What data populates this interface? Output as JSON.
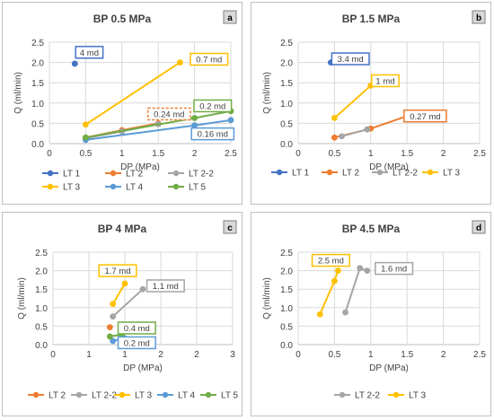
{
  "colors": {
    "LT 1": "#4472c4",
    "LT 2": "#ed7d31",
    "LT 2-2": "#a5a5a5",
    "LT 3": "#ffc000",
    "LT 4": "#5b9bd5",
    "LT 5": "#70ad47",
    "axis": "#bfbfbf",
    "grid": "#d9d9d9",
    "text": "#404040"
  },
  "chart_data": [
    {
      "id": "a",
      "panel_label": "a",
      "type": "scatter",
      "title": "BP  0.5 MPa",
      "xlabel": "DP (MPa)",
      "ylabel": "Q (ml/min)",
      "xlim": [
        0,
        2.5
      ],
      "ylim": [
        0,
        2.5
      ],
      "xticks": [
        "0",
        "0.5",
        "1",
        "1.5",
        "2",
        "2.5"
      ],
      "yticks": [
        "0.0",
        "0.5",
        "1.0",
        "1.5",
        "2.0",
        "2.5"
      ],
      "grid": true,
      "legend_position": "bottom",
      "legend": [
        "LT 1",
        "LT 2",
        "LT 2-2",
        "LT 3",
        "LT 4",
        "LT 5"
      ],
      "series": [
        {
          "name": "LT 1",
          "points": [
            [
              0.35,
              1.97
            ]
          ]
        },
        {
          "name": "LT 2",
          "points": [
            [
              0.5,
              0.15
            ],
            [
              1.0,
              0.33
            ],
            [
              1.5,
              0.5
            ]
          ]
        },
        {
          "name": "LT 2-2",
          "points": [
            [
              0.5,
              0.13
            ],
            [
              1.0,
              0.3
            ],
            [
              1.5,
              0.48
            ]
          ]
        },
        {
          "name": "LT 3",
          "points": [
            [
              0.5,
              0.47
            ],
            [
              1.8,
              2.0
            ]
          ]
        },
        {
          "name": "LT 4",
          "points": [
            [
              0.5,
              0.09
            ],
            [
              2.0,
              0.45
            ],
            [
              2.5,
              0.58
            ]
          ]
        },
        {
          "name": "LT 5",
          "points": [
            [
              0.5,
              0.15
            ],
            [
              2.0,
              0.63
            ],
            [
              2.5,
              0.8
            ]
          ]
        }
      ],
      "annotations": [
        {
          "text": "4 md",
          "color": "LT 1",
          "at": [
            0.55,
            2.25
          ]
        },
        {
          "text": "0.7 md",
          "color": "LT 3",
          "at": [
            2.2,
            2.08
          ]
        },
        {
          "text": "0.24 md",
          "color": "LT 2",
          "at": [
            1.65,
            0.73
          ],
          "dashed": true
        },
        {
          "text": "0.2 md",
          "color": "LT 5",
          "at": [
            2.25,
            0.93
          ]
        },
        {
          "text": "0.16 md",
          "color": "LT 4",
          "at": [
            2.25,
            0.24
          ]
        }
      ]
    },
    {
      "id": "b",
      "panel_label": "b",
      "type": "scatter",
      "title": "BP 1.5 MPa",
      "xlabel": "DP (MPa)",
      "ylabel": "Q (ml/min)",
      "xlim": [
        0,
        2.5
      ],
      "ylim": [
        0,
        2.5
      ],
      "xticks": [
        "0",
        "0.5",
        "1",
        "1.5",
        "2",
        "2.5"
      ],
      "yticks": [
        "0.0",
        "0.5",
        "1.0",
        "1.5",
        "2.0",
        "2.5"
      ],
      "grid": true,
      "legend_position": "bottom",
      "legend": [
        "LT 1",
        "LT 2",
        "LT 2-2",
        "LT 3"
      ],
      "series": [
        {
          "name": "LT 1",
          "points": [
            [
              0.45,
              2.0
            ]
          ]
        },
        {
          "name": "LT 2",
          "points": [
            [
              0.5,
              0.15
            ],
            [
              1.0,
              0.37
            ],
            [
              1.5,
              0.68
            ]
          ]
        },
        {
          "name": "LT 2-2",
          "points": [
            [
              0.6,
              0.18
            ],
            [
              0.95,
              0.35
            ]
          ]
        },
        {
          "name": "LT 3",
          "points": [
            [
              0.5,
              0.63
            ],
            [
              1.0,
              1.43
            ]
          ]
        }
      ],
      "annotations": [
        {
          "text": "3.4 md",
          "color": "LT 1",
          "at": [
            0.72,
            2.09
          ]
        },
        {
          "text": "1 md",
          "color": "LT 3",
          "at": [
            1.2,
            1.55
          ]
        },
        {
          "text": "0.27 md",
          "color": "LT 2",
          "at": [
            1.75,
            0.68
          ]
        }
      ]
    },
    {
      "id": "c",
      "panel_label": "c",
      "type": "scatter",
      "title": "BP 4 MPa",
      "xlabel": "DP (MPa)",
      "ylabel": "Q (ml/min)",
      "xlim": [
        0,
        3
      ],
      "ylim": [
        0,
        2.5
      ],
      "xticks": [
        "0",
        "1",
        "1",
        "2",
        "2",
        "3"
      ],
      "yticks": [
        "0.0",
        "0.5",
        "1.0",
        "1.5",
        "2.0",
        "2.5"
      ],
      "grid": true,
      "legend_position": "bottom",
      "legend": [
        "LT 2",
        "LT 2-2",
        "LT 3",
        "LT 4",
        "LT 5"
      ],
      "series": [
        {
          "name": "LT 2",
          "points": [
            [
              0.95,
              0.47
            ]
          ]
        },
        {
          "name": "LT 2-2",
          "points": [
            [
              1.0,
              0.76
            ],
            [
              1.5,
              1.5
            ]
          ]
        },
        {
          "name": "LT 3",
          "points": [
            [
              1.0,
              1.1
            ],
            [
              1.2,
              1.65
            ]
          ]
        },
        {
          "name": "LT 4",
          "points": [
            [
              1.0,
              0.1
            ],
            [
              1.2,
              0.17
            ]
          ]
        },
        {
          "name": "LT 5",
          "points": [
            [
              0.95,
              0.22
            ],
            [
              1.15,
              0.27
            ]
          ]
        }
      ],
      "annotations": [
        {
          "text": "1.7 md",
          "color": "LT 3",
          "at": [
            1.08,
            2.0
          ]
        },
        {
          "text": "1.1 md",
          "color": "LT 2-2",
          "at": [
            1.88,
            1.59
          ]
        },
        {
          "text": "0.4 md",
          "color": "LT 5",
          "at": [
            1.4,
            0.45
          ]
        },
        {
          "text": "0.2 md",
          "color": "LT 4",
          "at": [
            1.4,
            0.05
          ]
        }
      ]
    },
    {
      "id": "d",
      "panel_label": "d",
      "type": "scatter",
      "title": "BP 4.5 MPa",
      "xlabel": "DP (MPa)",
      "ylabel": "Q (ml/min)",
      "xlim": [
        0,
        2.5
      ],
      "ylim": [
        0,
        2.5
      ],
      "xticks": [
        "0",
        "0.5",
        "1",
        "1.5",
        "2",
        "2.5"
      ],
      "yticks": [
        "0.0",
        "0.5",
        "1.0",
        "1.5",
        "2.0",
        "2.5"
      ],
      "grid": true,
      "legend_position": "bottom",
      "legend": [
        "LT 2-2",
        "LT 3"
      ],
      "series": [
        {
          "name": "LT 2-2",
          "points": [
            [
              0.65,
              0.87
            ],
            [
              0.85,
              2.07
            ],
            [
              0.95,
              2.0
            ]
          ]
        },
        {
          "name": "LT 3",
          "points": [
            [
              0.3,
              0.82
            ],
            [
              0.5,
              1.72
            ],
            [
              0.55,
              2.0
            ]
          ]
        }
      ],
      "annotations": [
        {
          "text": "2.5 md",
          "color": "LT 3",
          "at": [
            0.45,
            2.28
          ]
        },
        {
          "text": "1.6 md",
          "color": "LT 2-2",
          "at": [
            1.32,
            2.06
          ]
        }
      ]
    }
  ]
}
